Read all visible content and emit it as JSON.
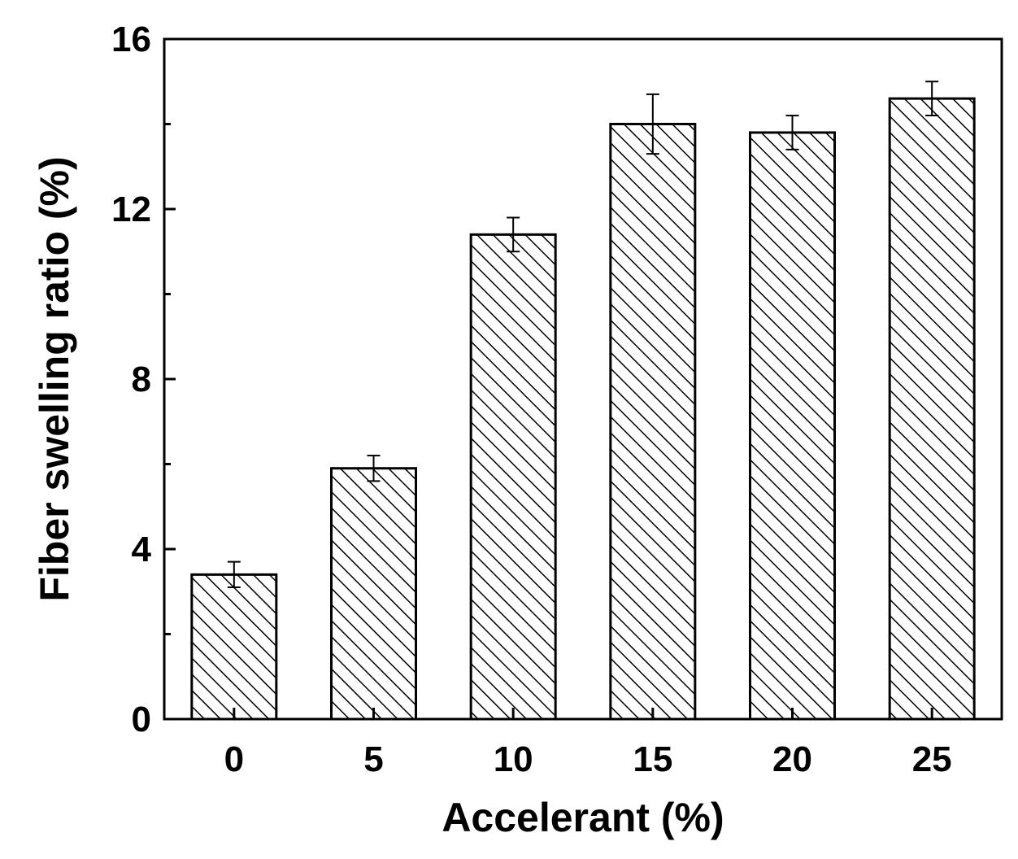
{
  "chart_data": {
    "type": "bar",
    "title": "",
    "xlabel": "Accelerant (%)",
    "ylabel": "Fiber swelling ratio (%)",
    "categories": [
      "0",
      "5",
      "10",
      "15",
      "20",
      "25"
    ],
    "values": [
      3.4,
      5.9,
      11.4,
      14.0,
      13.8,
      14.6
    ],
    "errors": [
      0.3,
      0.3,
      0.4,
      0.7,
      0.4,
      0.4
    ],
    "ylim": [
      0,
      16
    ],
    "yticks": [
      0,
      4,
      8,
      12,
      16
    ],
    "ytick_labels": [
      "0",
      "4",
      "8",
      "12",
      "16"
    ],
    "bar_fill": "hatched",
    "bar_color": "#000000",
    "grid": false,
    "legend": "none"
  }
}
